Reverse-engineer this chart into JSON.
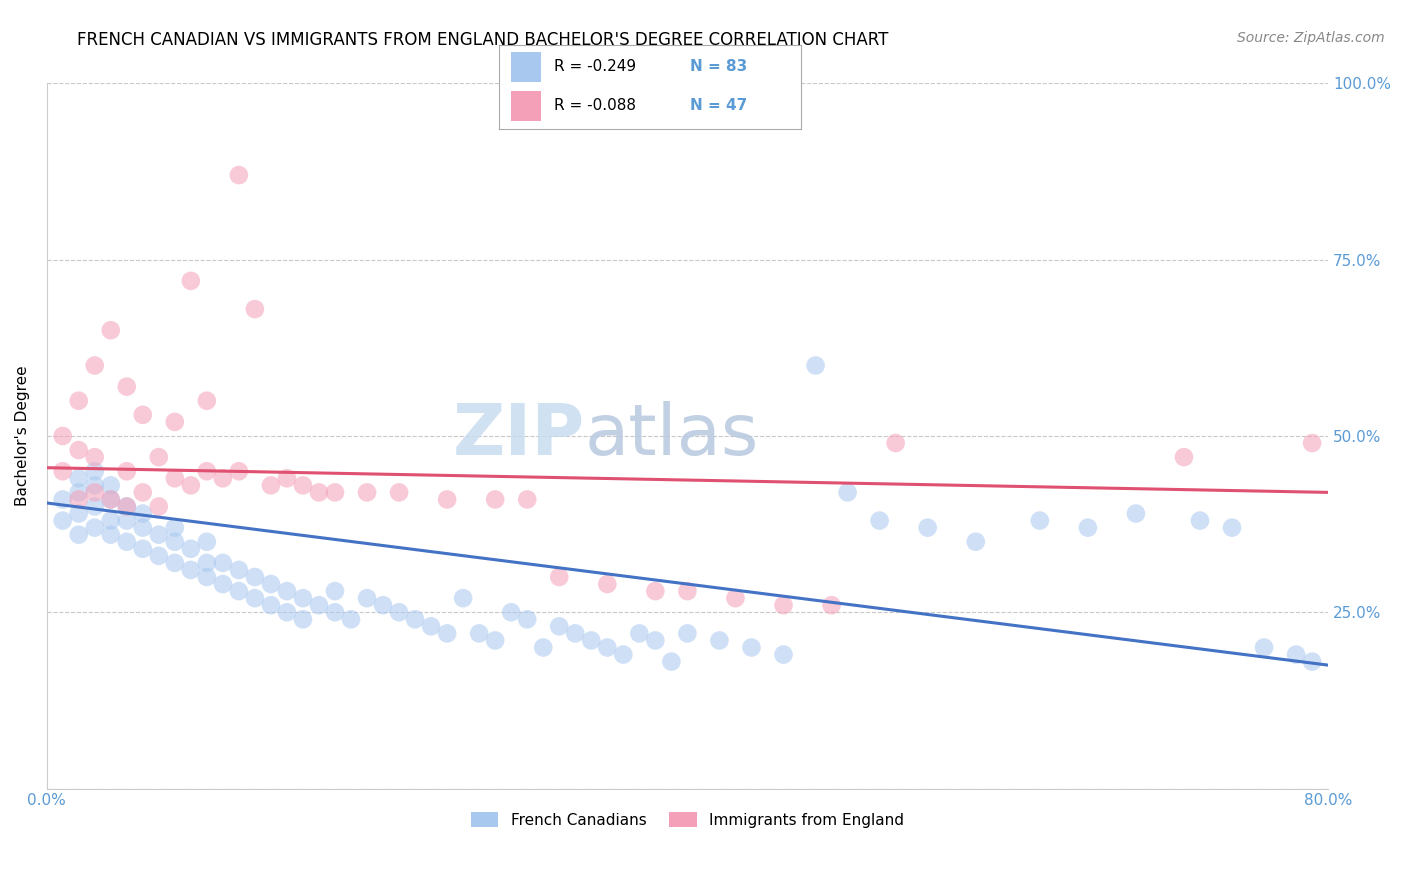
{
  "title": "FRENCH CANADIAN VS IMMIGRANTS FROM ENGLAND BACHELOR'S DEGREE CORRELATION CHART",
  "source": "Source: ZipAtlas.com",
  "ylabel": "Bachelor's Degree",
  "watermark_top": "ZIP",
  "watermark_bottom": "atlas",
  "x_min": 0.0,
  "x_max": 0.8,
  "y_min": 0.0,
  "y_max": 1.0,
  "x_ticks": [
    0.0,
    0.2,
    0.4,
    0.6,
    0.8
  ],
  "x_tick_labels": [
    "0.0%",
    "",
    "",
    "",
    "80.0%"
  ],
  "y_ticks": [
    0.0,
    0.25,
    0.5,
    0.75,
    1.0
  ],
  "y_tick_labels": [
    "",
    "25.0%",
    "50.0%",
    "75.0%",
    "100.0%"
  ],
  "blue_color": "#A8C8F0",
  "pink_color": "#F4A0B8",
  "blue_line_color": "#4472C4",
  "pink_line_color": "#E05070",
  "axis_color": "#5B9BD5",
  "grid_color": "#C8C8C8",
  "legend_R1": "R = -0.249",
  "legend_N1": "N = 83",
  "legend_R2": "R = -0.088",
  "legend_N2": "N = 47",
  "blue_label": "French Canadians",
  "pink_label": "Immigrants from England",
  "blue_scatter_x": [
    0.01,
    0.01,
    0.02,
    0.02,
    0.02,
    0.02,
    0.03,
    0.03,
    0.03,
    0.03,
    0.04,
    0.04,
    0.04,
    0.04,
    0.05,
    0.05,
    0.05,
    0.06,
    0.06,
    0.06,
    0.07,
    0.07,
    0.08,
    0.08,
    0.08,
    0.09,
    0.09,
    0.1,
    0.1,
    0.1,
    0.11,
    0.11,
    0.12,
    0.12,
    0.13,
    0.13,
    0.14,
    0.14,
    0.15,
    0.15,
    0.16,
    0.16,
    0.17,
    0.18,
    0.18,
    0.19,
    0.2,
    0.21,
    0.22,
    0.23,
    0.24,
    0.25,
    0.26,
    0.27,
    0.28,
    0.29,
    0.3,
    0.31,
    0.32,
    0.33,
    0.34,
    0.35,
    0.36,
    0.37,
    0.38,
    0.39,
    0.4,
    0.42,
    0.44,
    0.46,
    0.48,
    0.5,
    0.52,
    0.55,
    0.58,
    0.62,
    0.65,
    0.68,
    0.72,
    0.74,
    0.76,
    0.78,
    0.79
  ],
  "blue_scatter_y": [
    0.38,
    0.41,
    0.36,
    0.39,
    0.42,
    0.44,
    0.37,
    0.4,
    0.43,
    0.45,
    0.36,
    0.38,
    0.41,
    0.43,
    0.35,
    0.38,
    0.4,
    0.34,
    0.37,
    0.39,
    0.33,
    0.36,
    0.32,
    0.35,
    0.37,
    0.31,
    0.34,
    0.3,
    0.32,
    0.35,
    0.29,
    0.32,
    0.28,
    0.31,
    0.27,
    0.3,
    0.26,
    0.29,
    0.25,
    0.28,
    0.24,
    0.27,
    0.26,
    0.25,
    0.28,
    0.24,
    0.27,
    0.26,
    0.25,
    0.24,
    0.23,
    0.22,
    0.27,
    0.22,
    0.21,
    0.25,
    0.24,
    0.2,
    0.23,
    0.22,
    0.21,
    0.2,
    0.19,
    0.22,
    0.21,
    0.18,
    0.22,
    0.21,
    0.2,
    0.19,
    0.6,
    0.42,
    0.38,
    0.37,
    0.35,
    0.38,
    0.37,
    0.39,
    0.38,
    0.37,
    0.2,
    0.19,
    0.18
  ],
  "pink_scatter_x": [
    0.01,
    0.01,
    0.02,
    0.02,
    0.02,
    0.03,
    0.03,
    0.03,
    0.04,
    0.04,
    0.05,
    0.05,
    0.05,
    0.06,
    0.06,
    0.07,
    0.07,
    0.08,
    0.08,
    0.09,
    0.09,
    0.1,
    0.1,
    0.11,
    0.12,
    0.12,
    0.13,
    0.14,
    0.15,
    0.16,
    0.17,
    0.18,
    0.2,
    0.22,
    0.25,
    0.28,
    0.3,
    0.32,
    0.35,
    0.38,
    0.4,
    0.43,
    0.46,
    0.49,
    0.53,
    0.71,
    0.79
  ],
  "pink_scatter_y": [
    0.45,
    0.5,
    0.41,
    0.48,
    0.55,
    0.42,
    0.47,
    0.6,
    0.41,
    0.65,
    0.4,
    0.45,
    0.57,
    0.42,
    0.53,
    0.4,
    0.47,
    0.44,
    0.52,
    0.43,
    0.72,
    0.45,
    0.55,
    0.44,
    0.45,
    0.87,
    0.68,
    0.43,
    0.44,
    0.43,
    0.42,
    0.42,
    0.42,
    0.42,
    0.41,
    0.41,
    0.41,
    0.3,
    0.29,
    0.28,
    0.28,
    0.27,
    0.26,
    0.26,
    0.49,
    0.47,
    0.49
  ],
  "blue_trend_x": [
    0.0,
    0.8
  ],
  "blue_trend_y": [
    0.405,
    0.175
  ],
  "pink_trend_x": [
    0.0,
    0.8
  ],
  "pink_trend_y": [
    0.455,
    0.42
  ],
  "title_fontsize": 12,
  "source_fontsize": 10,
  "label_fontsize": 11,
  "tick_fontsize": 11,
  "legend_fontsize": 11,
  "scatter_size": 180,
  "scatter_alpha": 0.55,
  "line_width": 2.2
}
